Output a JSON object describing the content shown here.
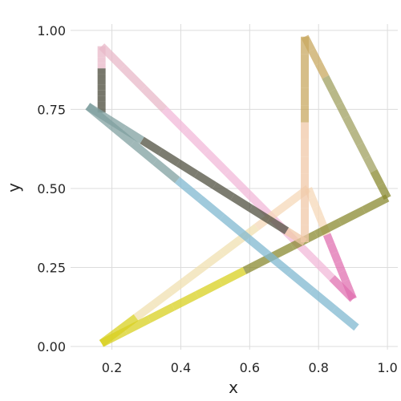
{
  "chart_data": {
    "type": "line",
    "xlabel": "x",
    "ylabel": "y",
    "xlim": [
      0.08,
      1.03
    ],
    "ylim": [
      -0.01,
      1.02
    ],
    "xticks": [
      0.2,
      0.4,
      0.6,
      0.8,
      1.0
    ],
    "xtick_labels": [
      "0.2",
      "0.4",
      "0.6",
      "0.8",
      "1.0"
    ],
    "yticks": [
      0.0,
      0.25,
      0.5,
      0.75,
      1.0
    ],
    "ytick_labels": [
      "0.00",
      "0.25",
      "0.50",
      "0.75",
      "1.00"
    ],
    "grid": true,
    "series": [
      {
        "color_start": "#5a8fd0",
        "color_end": "#ff7ab0",
        "x": [
          0.17,
          0.17,
          0.9,
          0.77,
          0.17,
          1.0,
          0.76,
          0.76,
          0.13,
          0.91
        ],
        "y": [
          0.74,
          0.95,
          0.15,
          0.5,
          0.01,
          0.47,
          0.98,
          0.33,
          0.76,
          0.06
        ],
        "colors": [
          "#4a4a3a",
          "#e8b8c8",
          "#f2b8d8",
          "#e070b0",
          "#f5d8b8",
          "#f0e0b0",
          "#d8d020",
          "#8a8a30",
          "#a0a060",
          "#c8a860",
          "#f0c8a8",
          "#505040",
          "#80a0a0",
          "#80b8d0"
        ]
      }
    ]
  }
}
